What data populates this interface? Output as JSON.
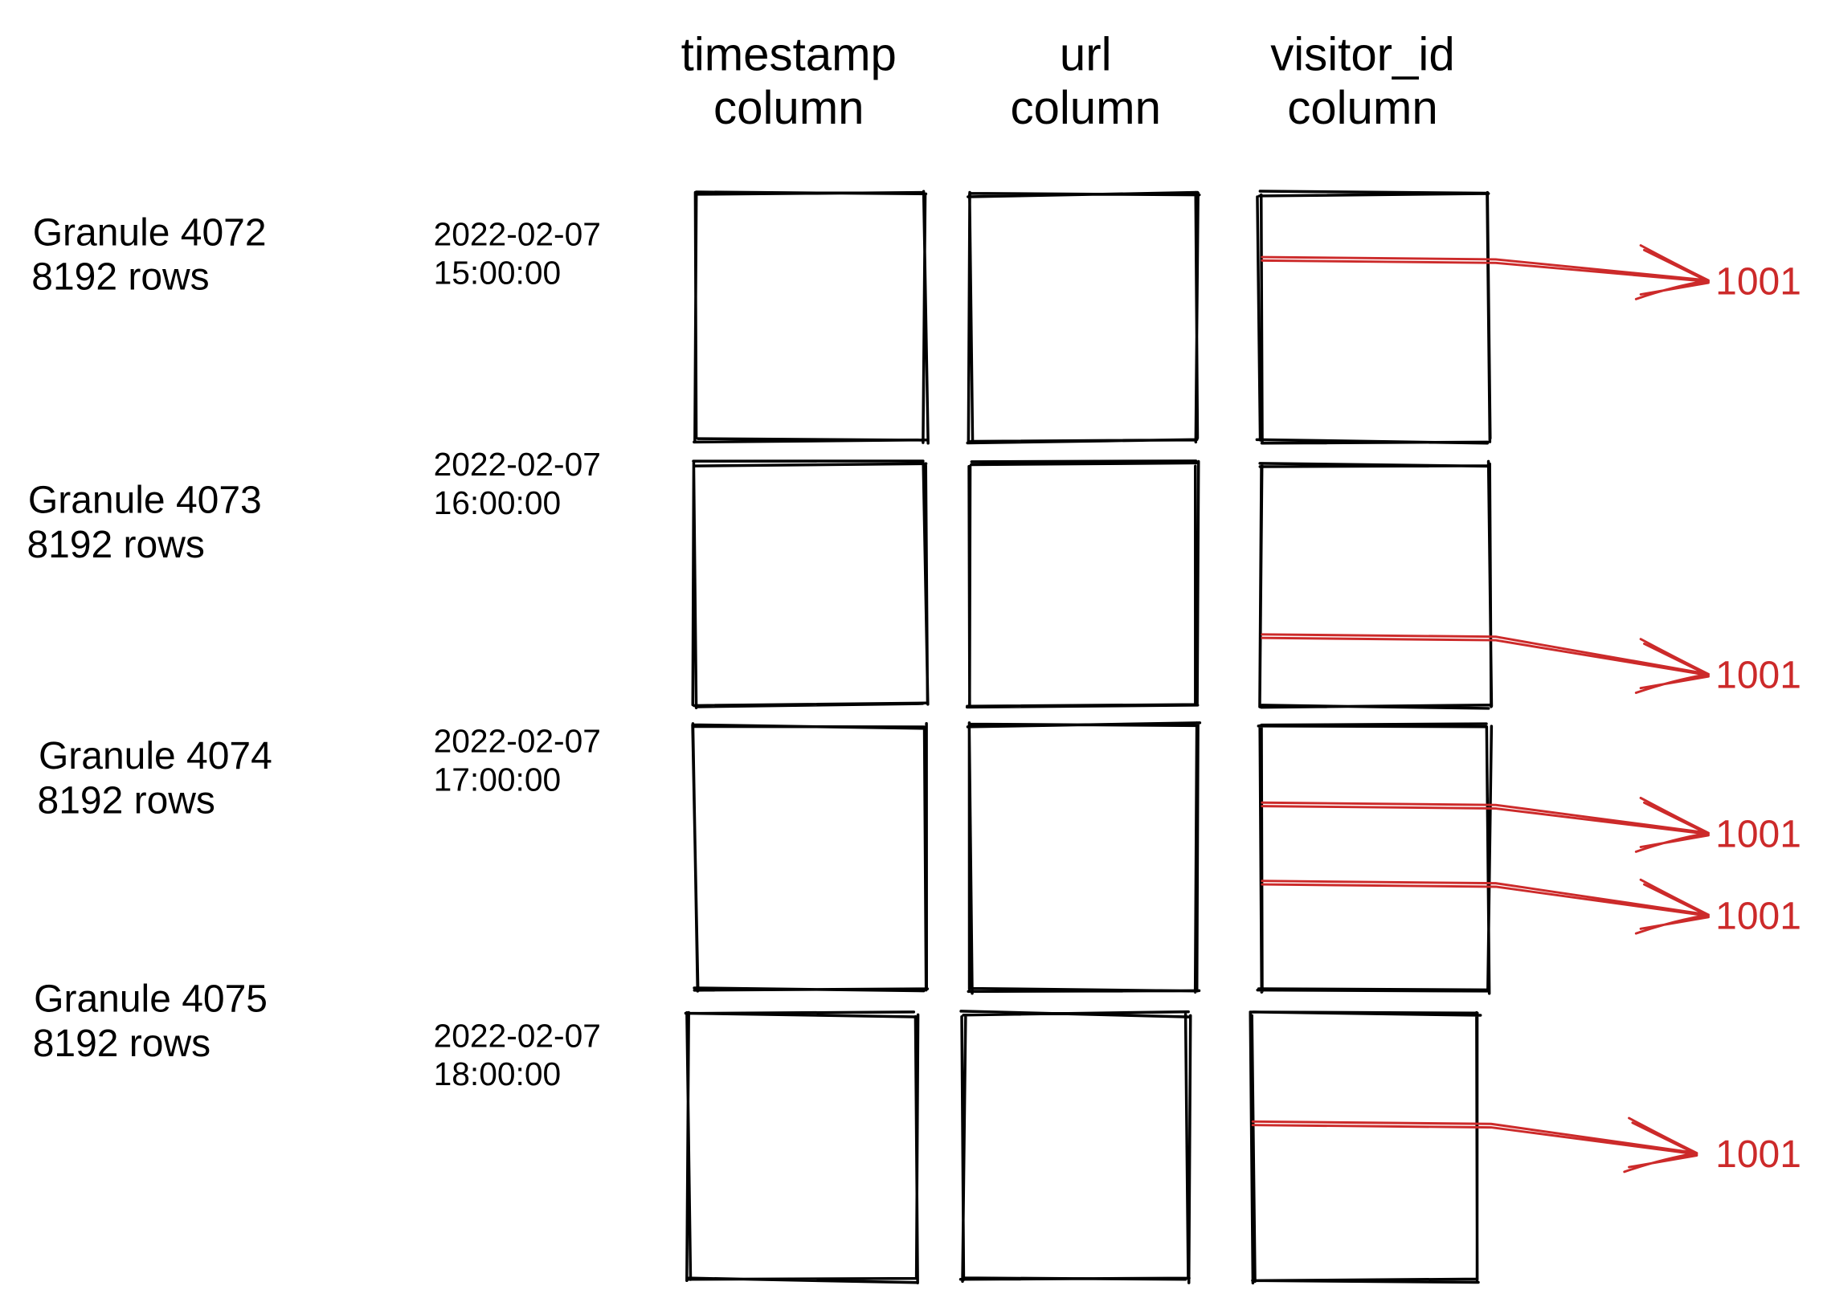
{
  "headers": [
    {
      "line1": "timestamp",
      "line2": "column"
    },
    {
      "line1": "url",
      "line2": "column"
    },
    {
      "line1": "visitor_id",
      "line2": "column"
    }
  ],
  "granules": [
    {
      "label": "Granule 4072",
      "rows": "8192 rows",
      "date": "2022-02-07",
      "time": "15:00:00",
      "matches": [
        "1001"
      ]
    },
    {
      "label": "Granule 4073",
      "rows": "8192 rows",
      "date": "2022-02-07",
      "time": "16:00:00",
      "matches": [
        "1001"
      ]
    },
    {
      "label": "Granule 4074",
      "rows": "8192 rows",
      "date": "2022-02-07",
      "time": "17:00:00",
      "matches": [
        "1001",
        "1001"
      ]
    },
    {
      "label": "Granule 4075",
      "rows": "8192 rows",
      "date": "2022-02-07",
      "time": "18:00:00",
      "matches": [
        "1001"
      ]
    }
  ],
  "colors": {
    "match": "#cc2a2a",
    "stroke": "#000000"
  }
}
